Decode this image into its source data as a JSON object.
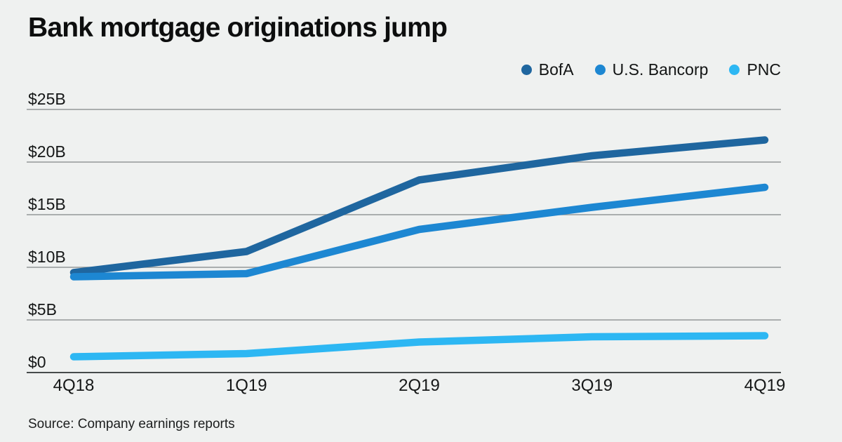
{
  "page": {
    "background": "#eff1f0"
  },
  "header": {
    "title": "Bank mortgage originations jump"
  },
  "footer": {
    "source_text": "Source: Company earnings reports"
  },
  "chart_data": {
    "type": "line",
    "title": "Bank mortgage originations jump",
    "categories": [
      "4Q18",
      "1Q19",
      "2Q19",
      "3Q19",
      "4Q19"
    ],
    "series": [
      {
        "name": "BofA",
        "color": "#1f669f",
        "values": [
          9.5,
          11.5,
          18.3,
          20.6,
          22.1
        ]
      },
      {
        "name": "U.S. Bancorp",
        "color": "#1d87d2",
        "values": [
          9.1,
          9.4,
          13.6,
          15.7,
          17.6
        ]
      },
      {
        "name": "PNC",
        "color": "#2db7f3",
        "values": [
          1.5,
          1.8,
          2.9,
          3.4,
          3.5
        ]
      }
    ],
    "xlabel": "",
    "ylabel": "",
    "y_tick_labels": [
      "$0",
      "$5B",
      "$10B",
      "$15B",
      "$20B",
      "$25B"
    ],
    "y_tick_values": [
      0,
      5,
      10,
      15,
      20,
      25
    ],
    "ylim": [
      0,
      25
    ],
    "grid": true,
    "legend_position": "top-right",
    "colors": {
      "background": "#eff1f0",
      "gridline": "#939897",
      "axis_line": "#474b4b",
      "text": "#151717"
    }
  }
}
